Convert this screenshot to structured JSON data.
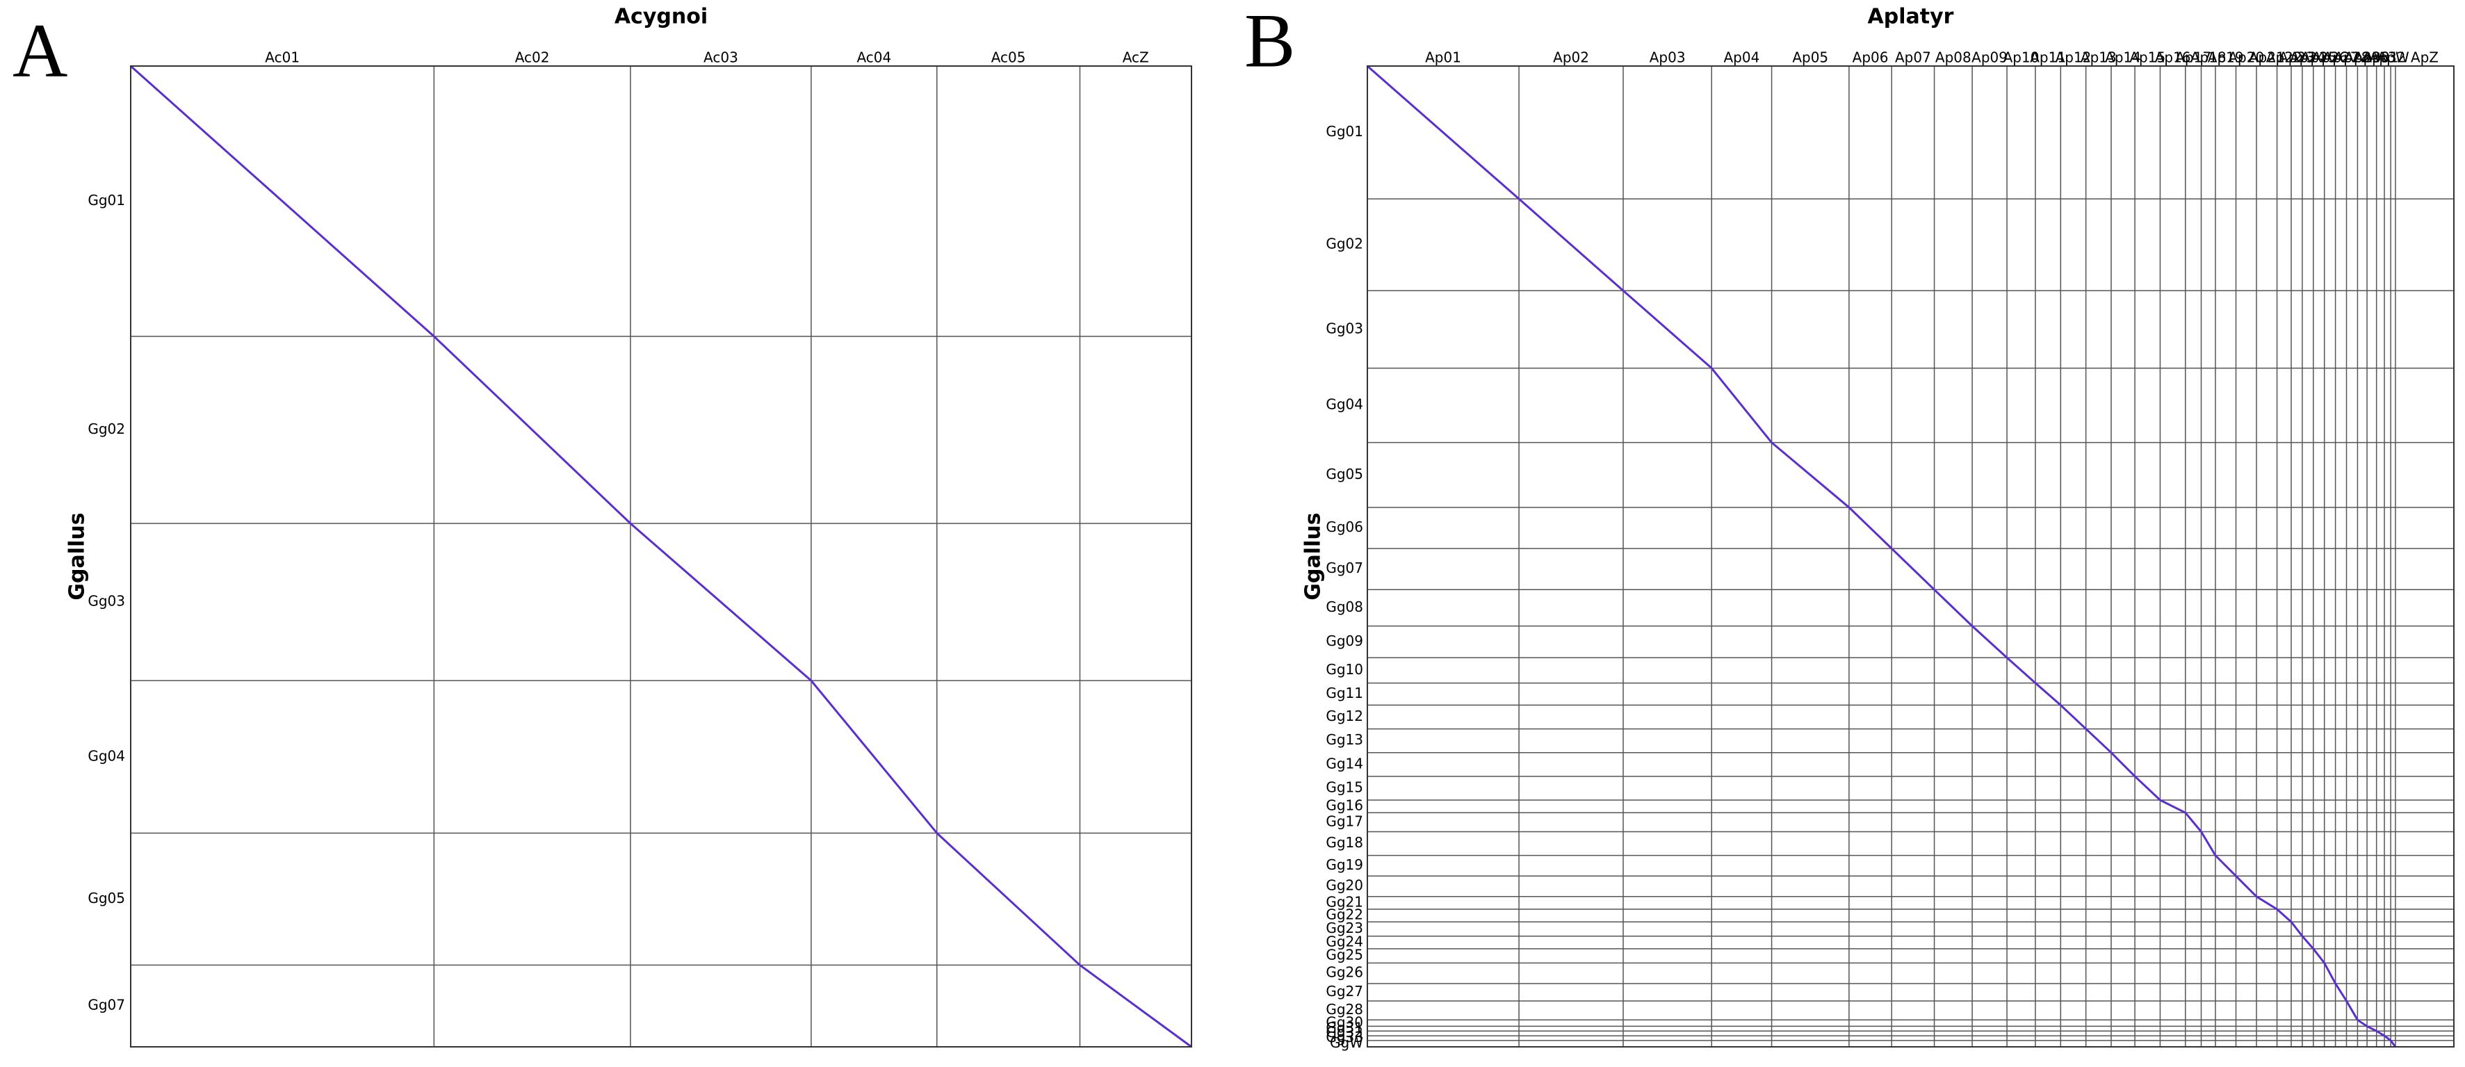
{
  "chart_data": [
    {
      "type": "dotplot",
      "panel_label": "A",
      "title": "Acygnoi",
      "ylabel": "Ggallus",
      "color": "#5a2fd0",
      "x_categories": [
        "Ac01",
        "Ac02",
        "Ac03",
        "Ac04",
        "Ac05",
        "AcZ"
      ],
      "x_sizes": [
        193,
        125,
        115,
        80,
        91,
        71
      ],
      "y_categories": [
        "Gg01",
        "Gg02",
        "Gg03",
        "Gg04",
        "Gg05",
        "Gg07"
      ],
      "y_sizes": [
        172,
        119,
        100,
        97,
        84,
        52
      ]
    },
    {
      "type": "dotplot",
      "panel_label": "B",
      "title": "Aplatyr",
      "ylabel": "Ggallus",
      "color": "#5a2fd0",
      "x_categories": [
        "Ap01",
        "Ap02",
        "Ap03",
        "Ap04",
        "Ap05",
        "Ap06",
        "Ap07",
        "Ap08",
        "Ap09",
        "Ap10",
        "Ap11",
        "Ap12",
        "Ap13",
        "Ap14",
        "Ap15",
        "Ap16",
        "Ap17",
        "Ap18",
        "Ap19",
        "Ap20",
        "Ap21",
        "Ap22",
        "Ap23",
        "Ap24",
        "Ap25",
        "Ap26",
        "Ap27",
        "Ap28",
        "Ap29",
        "Ap30",
        "Ap31",
        "Ap32",
        "ApW",
        "ApZ"
      ],
      "x_sizes": [
        96,
        66,
        56,
        38,
        49,
        27,
        27,
        24,
        22,
        18,
        16,
        16,
        16,
        15,
        16,
        16,
        10,
        9,
        13,
        13,
        13,
        9,
        7,
        7,
        7,
        7,
        7,
        7,
        6,
        6,
        5,
        4,
        3,
        37
      ],
      "y_categories": [
        "Gg01",
        "Gg02",
        "Gg03",
        "Gg04",
        "Gg05",
        "Gg06",
        "Gg07",
        "Gg08",
        "Gg09",
        "Gg10",
        "Gg11",
        "Gg12",
        "Gg13",
        "Gg14",
        "Gg15",
        "Gg16",
        "Gg17",
        "Gg18",
        "Gg19",
        "Gg20",
        "Gg21",
        "Gg22",
        "Gg23",
        "Gg24",
        "Gg25",
        "Gg26",
        "Gg27",
        "Gg28",
        "Gg30",
        "Gg31",
        "Gg32",
        "Gg33",
        "GgW"
      ],
      "y_sizes": [
        84,
        58,
        49,
        47,
        41,
        26,
        26,
        23,
        20,
        16,
        14,
        15,
        15,
        15,
        15,
        8,
        12,
        15,
        13,
        13,
        8,
        8,
        9,
        8,
        9,
        13,
        11,
        12,
        4,
        3,
        3,
        3,
        4
      ]
    }
  ]
}
